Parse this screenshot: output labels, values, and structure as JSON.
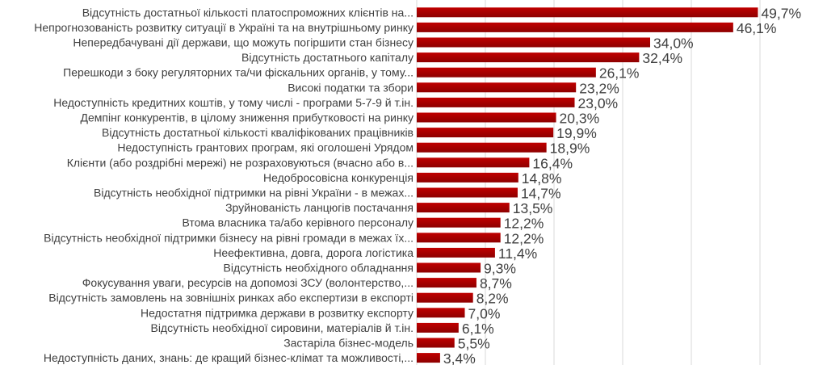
{
  "colors": {
    "bar": "#c00000",
    "bar_dark": "#8e0000",
    "grid": "#d9d9d9",
    "text": "#404040"
  },
  "chart_data": {
    "type": "bar",
    "orientation": "horizontal",
    "title": "",
    "xlabel": "",
    "ylabel": "",
    "xlim": [
      0,
      50
    ],
    "grid": true,
    "categories": [
      "Відсутність достатньої кількості платоспроможних клієнтів на...",
      "Непрогнозованість розвитку ситуації в Україні та на внутрішньому ринку",
      "Непередбачувані дії держави, що можуть погіршити стан бізнесу",
      "Відсутність достатнього капіталу",
      "Перешкоди з боку регуляторних та/чи фіскальних органів, у тому...",
      "Високі податки та збори",
      "Недоступність кредитних коштів, у тому числі - програми 5-7-9 й т.ін.",
      "Демпінг конкурентів, в цілому зниження прибутковості на ринку",
      "Відсутність достатньої кількості кваліфікованих працівників",
      "Недоступність грантових програм, які оголошені Урядом",
      "Клієнти (або роздрібні мережі) не розраховуються (вчасно або в...",
      "Недобросовісна конкуренція",
      "Відсутність необхідної підтримки на рівні України - в межах...",
      "Зруйнованість ланцюгів постачання",
      "Втома власника та/або керівного персоналу",
      "Відсутність необхідної підтримки бізнесу на рівні громади в межах їх...",
      "Неефективна, довга, дорога логістика",
      "Відсутність необхідного обладнання",
      "Фокусування уваги, ресурсів на допомозі ЗСУ (волонтерство,...",
      "Відсутність замовлень на зовнішніх ринках або експертизи в експорті",
      "Недостатня підтримка держави в розвитку експорту",
      "Відсутність необхідної сировини, матеріалів й т.ін.",
      "Застаріла бізнес-модель",
      "Недоступність даних, знань: де кращий бізнес-клімат та можливості,..."
    ],
    "values": [
      49.7,
      46.1,
      34.0,
      32.4,
      26.1,
      23.2,
      23.0,
      20.3,
      19.9,
      18.9,
      16.4,
      14.8,
      14.7,
      13.5,
      12.2,
      12.2,
      11.4,
      9.3,
      8.7,
      8.2,
      7.0,
      6.1,
      5.5,
      3.4
    ],
    "value_labels": [
      "49,7%",
      "46,1%",
      "34,0%",
      "32,4%",
      "26,1%",
      "23,2%",
      "23,0%",
      "20,3%",
      "19,9%",
      "18,9%",
      "16,4%",
      "14,8%",
      "14,7%",
      "13,5%",
      "12,2%",
      "12,2%",
      "11,4%",
      "9,3%",
      "8,7%",
      "8,2%",
      "7,0%",
      "6,1%",
      "5,5%",
      "3,4%"
    ]
  }
}
